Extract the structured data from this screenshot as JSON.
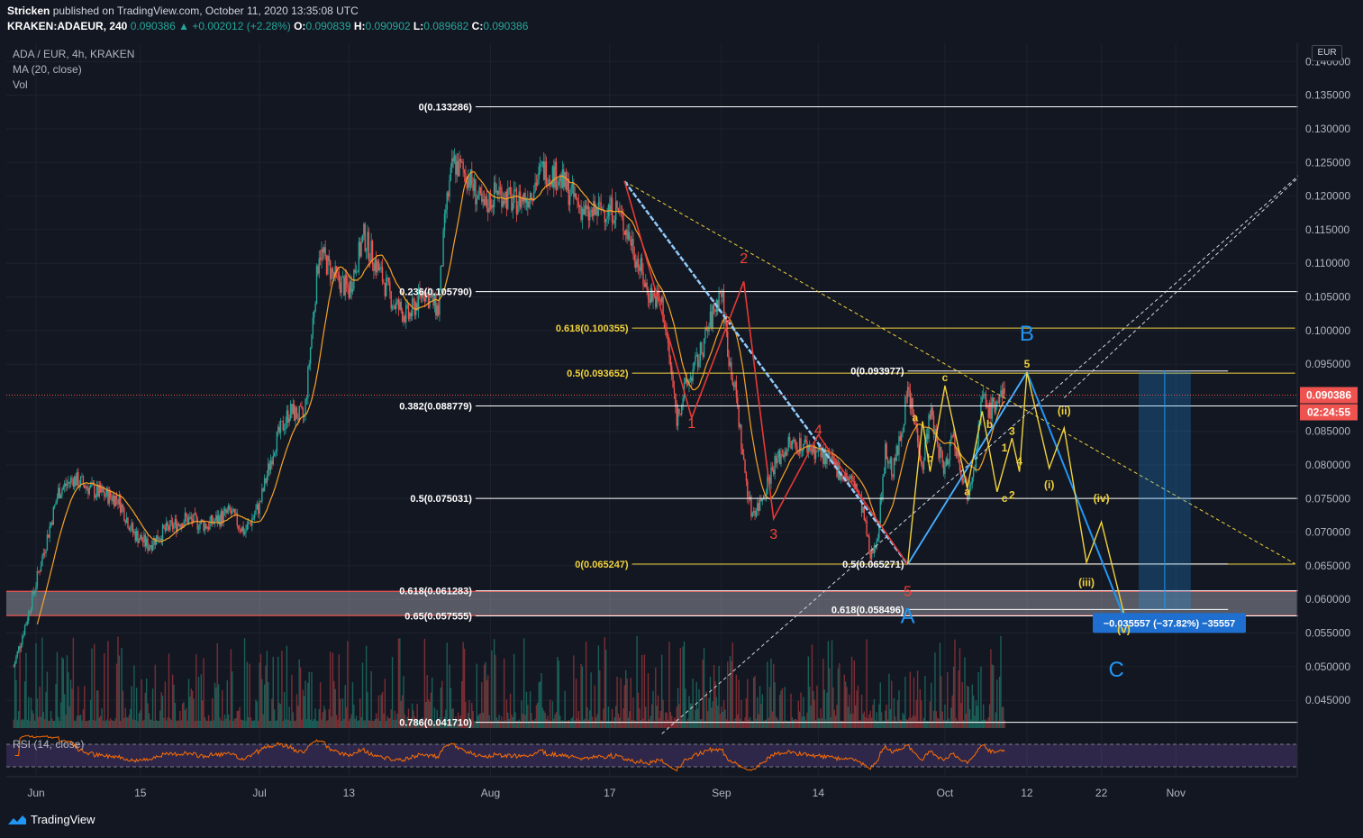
{
  "header": {
    "publisher": "Stricken",
    "published_text": "published on TradingView.com, October 11, 2020 13:35:08 UTC",
    "symbol": "KRAKEN:ADAEUR, 240",
    "last": "0.090386",
    "change": "▲ +0.002012 (+2.28%)",
    "o_label": "O:",
    "o": "0.090839",
    "h_label": "H:",
    "h": "0.090902",
    "l_label": "L:",
    "l": "0.089682",
    "c_label": "C:",
    "c": "0.090386"
  },
  "legend": {
    "title": "ADA / EUR, 4h, KRAKEN",
    "ma": "MA (20, close)",
    "vol": "Vol",
    "rsi": "RSI (14, close)"
  },
  "footer": {
    "brand": "TradingView",
    "icon": "tradingview-logo-icon"
  },
  "colors": {
    "bg": "#131722",
    "up": "#26a69a",
    "down": "#ef5350",
    "ma": "#f7a325",
    "yellow": "#f0d23c",
    "blue": "#2196f3",
    "white": "#ffffff",
    "rsi": "#ff6d00"
  },
  "chart_data": {
    "type": "candlestick",
    "currency": "EUR",
    "y_range": [
      0.0405,
      0.1415
    ],
    "y_ticks": [
      "0.140000",
      "0.135000",
      "0.130000",
      "0.125000",
      "0.120000",
      "0.115000",
      "0.110000",
      "0.105000",
      "0.100000",
      "0.095000",
      "0.090000",
      "0.085000",
      "0.080000",
      "0.075000",
      "0.070000",
      "0.065000",
      "0.060000",
      "0.055000",
      "0.050000",
      "0.045000"
    ],
    "x_ticks": [
      {
        "label": "Jun",
        "day": 0
      },
      {
        "label": "15",
        "day": 14
      },
      {
        "label": "Jul",
        "day": 30
      },
      {
        "label": "13",
        "day": 42
      },
      {
        "label": "Aug",
        "day": 61
      },
      {
        "label": "17",
        "day": 77
      },
      {
        "label": "Sep",
        "day": 92
      },
      {
        "label": "14",
        "day": 105
      },
      {
        "label": "Oct",
        "day": 122
      },
      {
        "label": "12",
        "day": 133
      },
      {
        "label": "22",
        "day": 143
      },
      {
        "label": "Nov",
        "day": 153
      }
    ],
    "price_path": [
      [
        -3,
        0.05
      ],
      [
        -1,
        0.058
      ],
      [
        1,
        0.067
      ],
      [
        3,
        0.076
      ],
      [
        5,
        0.078
      ],
      [
        8,
        0.076
      ],
      [
        11,
        0.075
      ],
      [
        13,
        0.07
      ],
      [
        15,
        0.068
      ],
      [
        17,
        0.07
      ],
      [
        20,
        0.072
      ],
      [
        23,
        0.071
      ],
      [
        26,
        0.073
      ],
      [
        28,
        0.07
      ],
      [
        30,
        0.074
      ],
      [
        32,
        0.083
      ],
      [
        34,
        0.088
      ],
      [
        36,
        0.087
      ],
      [
        38,
        0.112
      ],
      [
        40,
        0.108
      ],
      [
        42,
        0.106
      ],
      [
        44,
        0.114
      ],
      [
        46,
        0.109
      ],
      [
        48,
        0.104
      ],
      [
        50,
        0.102
      ],
      [
        52,
        0.106
      ],
      [
        54,
        0.103
      ],
      [
        55,
        0.118
      ],
      [
        56,
        0.125
      ],
      [
        58,
        0.123
      ],
      [
        60,
        0.118
      ],
      [
        62,
        0.121
      ],
      [
        64,
        0.119
      ],
      [
        66,
        0.12
      ],
      [
        68,
        0.124
      ],
      [
        70,
        0.123
      ],
      [
        72,
        0.12
      ],
      [
        74,
        0.117
      ],
      [
        76,
        0.118
      ],
      [
        78,
        0.118
      ],
      [
        80,
        0.113
      ],
      [
        82,
        0.106
      ],
      [
        84,
        0.104
      ],
      [
        85,
        0.096
      ],
      [
        86,
        0.087
      ],
      [
        87,
        0.091
      ],
      [
        89,
        0.096
      ],
      [
        91,
        0.103
      ],
      [
        92,
        0.106
      ],
      [
        93,
        0.096
      ],
      [
        94,
        0.09
      ],
      [
        95,
        0.08
      ],
      [
        96,
        0.073
      ],
      [
        97,
        0.074
      ],
      [
        99,
        0.08
      ],
      [
        101,
        0.083
      ],
      [
        103,
        0.083
      ],
      [
        105,
        0.082
      ],
      [
        107,
        0.08
      ],
      [
        110,
        0.077
      ],
      [
        111,
        0.073
      ],
      [
        112,
        0.066
      ],
      [
        113,
        0.07
      ],
      [
        114,
        0.082
      ],
      [
        115,
        0.079
      ],
      [
        116,
        0.084
      ],
      [
        117,
        0.091
      ],
      [
        118,
        0.086
      ],
      [
        119,
        0.08
      ],
      [
        120,
        0.088
      ],
      [
        121,
        0.083
      ],
      [
        122,
        0.079
      ],
      [
        123,
        0.085
      ],
      [
        124,
        0.08
      ],
      [
        125,
        0.076
      ],
      [
        126,
        0.081
      ],
      [
        127,
        0.09
      ],
      [
        128,
        0.088
      ],
      [
        129,
        0.0895
      ],
      [
        130,
        0.0904
      ]
    ],
    "ma": {
      "name": "MA (20, close)",
      "period": 20
    },
    "rsi": {
      "name": "RSI (14, close)",
      "upper": 70,
      "lower": 30
    },
    "fib_levels": [
      {
        "label": "0(0.133286)",
        "value": 0.133286,
        "color": "white",
        "from_day": 59,
        "to_day": 173
      },
      {
        "label": "0.236(0.105790)",
        "value": 0.10579,
        "color": "white",
        "from_day": 59,
        "to_day": 173
      },
      {
        "label": "0.382(0.088779)",
        "value": 0.088779,
        "color": "white",
        "from_day": 59,
        "to_day": 173
      },
      {
        "label": "0.5(0.075031)",
        "value": 0.075031,
        "color": "white",
        "from_day": 59,
        "to_day": 173
      },
      {
        "label": "0.618(0.061283)",
        "value": 0.061283,
        "color": "white",
        "from_day": 59,
        "to_day": 173
      },
      {
        "label": "0.65(0.057555)",
        "value": 0.057555,
        "color": "white",
        "from_day": 59,
        "to_day": 173
      },
      {
        "label": "0.786(0.041710)",
        "value": 0.04171,
        "color": "white",
        "from_day": 59,
        "to_day": 173
      },
      {
        "label": "0.618(0.100355)",
        "value": 0.100355,
        "color": "yellow",
        "from_day": 80,
        "to_day": 169
      },
      {
        "label": "0.5(0.093652)",
        "value": 0.093652,
        "color": "yellow",
        "from_day": 80,
        "to_day": 169
      },
      {
        "label": "0(0.065247)",
        "value": 0.065247,
        "color": "yellow",
        "from_day": 80,
        "to_day": 169
      },
      {
        "label": "0(0.093977)",
        "value": 0.093977,
        "color": "white",
        "from_day": 117,
        "to_day": 160
      },
      {
        "label": "0.5(0.065271)",
        "value": 0.065271,
        "color": "white",
        "from_day": 117,
        "to_day": 160
      },
      {
        "label": "0.618(0.058496)",
        "value": 0.058496,
        "color": "white",
        "from_day": 117,
        "to_day": 160
      }
    ],
    "support_zone": {
      "high": 0.0612,
      "low": 0.0576
    },
    "wave_labels_red": [
      {
        "text": "1",
        "day": 88,
        "price": 0.0855
      },
      {
        "text": "2",
        "day": 95,
        "price": 0.11
      },
      {
        "text": "3",
        "day": 99,
        "price": 0.069
      },
      {
        "text": "4",
        "day": 105,
        "price": 0.0845
      },
      {
        "text": "5",
        "day": 117,
        "price": 0.0605
      }
    ],
    "wave_labels_yellow": [
      {
        "text": "a",
        "day": 118,
        "price": 0.0865
      },
      {
        "text": "b",
        "day": 120,
        "price": 0.0805
      },
      {
        "text": "c",
        "day": 122,
        "price": 0.0925
      },
      {
        "text": "a",
        "day": 125,
        "price": 0.0755
      },
      {
        "text": "b",
        "day": 128,
        "price": 0.0855
      },
      {
        "text": "c",
        "day": 130,
        "price": 0.0745
      },
      {
        "text": "1",
        "day": 130,
        "price": 0.082
      },
      {
        "text": "2",
        "day": 131,
        "price": 0.075
      },
      {
        "text": "3",
        "day": 131,
        "price": 0.0845
      },
      {
        "text": "4",
        "day": 132,
        "price": 0.08
      },
      {
        "text": "5",
        "day": 133,
        "price": 0.0945
      },
      {
        "text": "(ii)",
        "day": 138,
        "price": 0.0875
      },
      {
        "text": "(i)",
        "day": 136,
        "price": 0.0765
      },
      {
        "text": "(iv)",
        "day": 143,
        "price": 0.0745
      },
      {
        "text": "(iii)",
        "day": 141,
        "price": 0.062
      },
      {
        "text": "(v)",
        "day": 146,
        "price": 0.055
      }
    ],
    "wave_labels_blue": [
      {
        "text": "A",
        "day": 117,
        "price": 0.0565
      },
      {
        "text": "B",
        "day": 133,
        "price": 0.0985
      },
      {
        "text": "C",
        "day": 145,
        "price": 0.0485
      }
    ],
    "measure": {
      "text": "−0.035557 (−37.82%) −35557",
      "from": 0.094,
      "to": 0.0585
    },
    "last_price": {
      "value": 0.090386,
      "label": "0.090386",
      "countdown": "02:24:55"
    }
  }
}
